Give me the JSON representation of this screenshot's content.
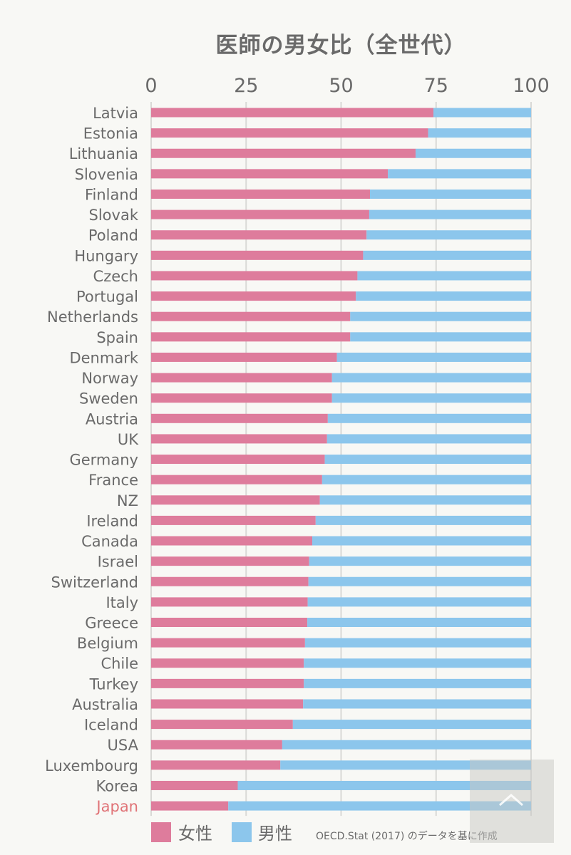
{
  "chart_data": {
    "type": "bar",
    "orientation": "horizontal",
    "stacked": true,
    "title": "医師の男女比（全世代）",
    "xlabel": "",
    "ylabel": "",
    "xlim": [
      0,
      100
    ],
    "xticks": [
      0,
      25,
      50,
      75,
      100
    ],
    "grid": true,
    "legend_position": "bottom-left",
    "categories": [
      "Latvia",
      "Estonia",
      "Lithuania",
      "Slovenia",
      "Finland",
      "Slovak",
      "Poland",
      "Hungary",
      "Czech",
      "Portugal",
      "Netherlands",
      "Spain",
      "Denmark",
      "Norway",
      "Sweden",
      "Austria",
      "UK",
      "Germany",
      "France",
      "NZ",
      "Ireland",
      "Canada",
      "Israel",
      "Switzerland",
      "Italy",
      "Greece",
      "Belgium",
      "Chile",
      "Turkey",
      "Australia",
      "Iceland",
      "USA",
      "Luxembourg",
      "Korea",
      "Japan"
    ],
    "highlight_category": "Japan",
    "series": [
      {
        "name": "女性",
        "color": "#de7c9c",
        "values": [
          74.3,
          72.9,
          69.6,
          62.3,
          57.6,
          57.4,
          56.7,
          55.8,
          54.3,
          53.9,
          52.4,
          52.4,
          48.9,
          47.6,
          47.6,
          46.5,
          46.3,
          45.7,
          45.0,
          44.4,
          43.3,
          42.4,
          41.6,
          41.4,
          41.2,
          41.1,
          40.5,
          40.2,
          40.2,
          40.0,
          37.3,
          34.5,
          34.0,
          22.8,
          20.3
        ]
      },
      {
        "name": "男性",
        "color": "#8cc6ec",
        "values": [
          25.7,
          27.1,
          30.4,
          37.7,
          42.4,
          42.6,
          43.3,
          44.2,
          45.7,
          46.1,
          47.6,
          47.6,
          51.1,
          52.4,
          52.4,
          53.5,
          53.7,
          54.3,
          55.0,
          55.6,
          56.7,
          57.6,
          58.4,
          58.6,
          58.8,
          58.9,
          59.5,
          59.8,
          59.8,
          60.0,
          62.7,
          65.5,
          66.0,
          77.2,
          79.7
        ]
      }
    ],
    "source_note": "OECD.Stat (2017) のデータを基に作成"
  },
  "colors": {
    "background": "#f8f8f5",
    "text": "#6a6a6a",
    "highlight_text": "#e07377",
    "grid": "#d9d9d6"
  },
  "scroll_top_button": {
    "icon": "chevron-up-icon"
  }
}
